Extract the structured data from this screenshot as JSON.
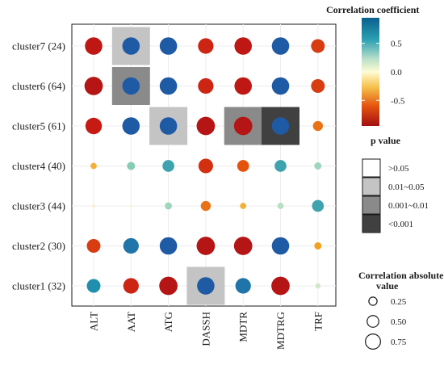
{
  "chart_data": {
    "type": "heatmap",
    "subtype": "correlation dot plot",
    "rows": [
      "cluster7 (24)",
      "cluster6 (64)",
      "cluster5 (61)",
      "cluster4 (40)",
      "cluster3 (44)",
      "cluster2 (30)",
      "cluster1 (32)"
    ],
    "columns": [
      "ALT",
      "AAT",
      "ATG",
      "DASSH",
      "MDTR",
      "MDTRG",
      "TRF"
    ],
    "correlation": [
      [
        -0.85,
        0.85,
        0.85,
        -0.75,
        -0.85,
        0.85,
        -0.65
      ],
      [
        -0.9,
        0.85,
        0.85,
        -0.75,
        -0.85,
        0.85,
        -0.65
      ],
      [
        -0.8,
        0.85,
        0.85,
        -0.9,
        -0.9,
        0.85,
        -0.45
      ],
      [
        -0.25,
        0.35,
        0.55,
        -0.7,
        -0.55,
        0.55,
        0.3
      ],
      [
        -0.05,
        0.05,
        0.3,
        -0.45,
        -0.25,
        0.25,
        0.55
      ],
      [
        -0.65,
        0.75,
        0.85,
        -0.9,
        -0.9,
        0.85,
        -0.3
      ],
      [
        0.65,
        -0.75,
        -0.9,
        0.85,
        0.75,
        -0.9,
        0.2
      ]
    ],
    "p_value_category": [
      [
        ">0.05",
        "0.01~0.05",
        ">0.05",
        ">0.05",
        ">0.05",
        ">0.05",
        ">0.05"
      ],
      [
        ">0.05",
        "0.001~0.01",
        ">0.05",
        ">0.05",
        ">0.05",
        ">0.05",
        ">0.05"
      ],
      [
        ">0.05",
        ">0.05",
        "0.01~0.05",
        ">0.05",
        "0.001~0.01",
        "<0.001",
        ">0.05"
      ],
      [
        ">0.05",
        ">0.05",
        ">0.05",
        ">0.05",
        ">0.05",
        ">0.05",
        ">0.05"
      ],
      [
        ">0.05",
        ">0.05",
        ">0.05",
        ">0.05",
        ">0.05",
        ">0.05",
        ">0.05"
      ],
      [
        ">0.05",
        ">0.05",
        ">0.05",
        ">0.05",
        ">0.05",
        ">0.05",
        ">0.05"
      ],
      [
        ">0.05",
        ">0.05",
        ">0.05",
        "0.01~0.05",
        ">0.05",
        ">0.05",
        ">0.05"
      ]
    ],
    "color_legend": {
      "title": "Correlation coefficient",
      "range": [
        -0.95,
        0.95
      ],
      "ticks": [
        0.5,
        0.0,
        -0.5
      ],
      "tick_labels": [
        "0.5",
        "0.0",
        "-0.5"
      ]
    },
    "p_legend": {
      "title": "p value",
      "categories": [
        {
          "label": ">0.05",
          "color": "#ffffff"
        },
        {
          "label": "0.01~0.05",
          "color": "#c4c4c4"
        },
        {
          "label": "0.001~0.01",
          "color": "#8a8a8a"
        },
        {
          "label": "<0.001",
          "color": "#404040"
        }
      ]
    },
    "size_legend": {
      "title_line1": "Correlation  absolute",
      "title_line2": "value",
      "values": [
        0.25,
        0.5,
        0.75
      ],
      "labels": [
        "0.25",
        "0.50",
        "0.75"
      ]
    },
    "grid": true
  }
}
